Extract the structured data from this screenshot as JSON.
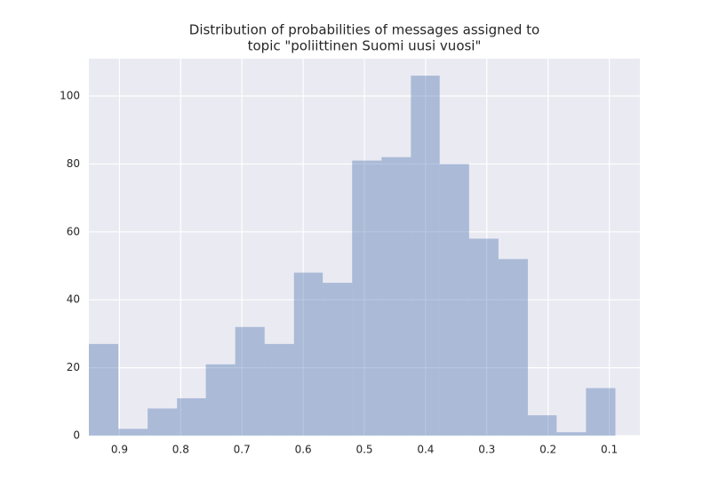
{
  "chart_data": {
    "type": "histogram",
    "title": [
      "Distribution of probabilities of messages assigned to",
      "topic \"poliittinen Suomi uusi vuosi\""
    ],
    "bins": [
      0.09,
      0.138,
      0.186,
      0.233,
      0.281,
      0.329,
      0.377,
      0.424,
      0.472,
      0.52,
      0.568,
      0.615,
      0.663,
      0.711,
      0.759,
      0.806,
      0.854,
      0.902,
      0.95
    ],
    "counts": [
      14,
      1,
      6,
      52,
      58,
      80,
      106,
      82,
      81,
      45,
      48,
      27,
      32,
      21,
      11,
      8,
      2,
      27
    ],
    "color": "#4c72b0",
    "opacity": 0.4,
    "xlim": [
      0.95,
      0.05
    ],
    "xticks": [
      0.9,
      0.8,
      0.7,
      0.6,
      0.5,
      0.4,
      0.3,
      0.2,
      0.1
    ],
    "ylim": [
      0,
      111
    ],
    "yticks": [
      0,
      20,
      40,
      60,
      80,
      100
    ],
    "grid": true,
    "background": "#eaeaf2"
  }
}
